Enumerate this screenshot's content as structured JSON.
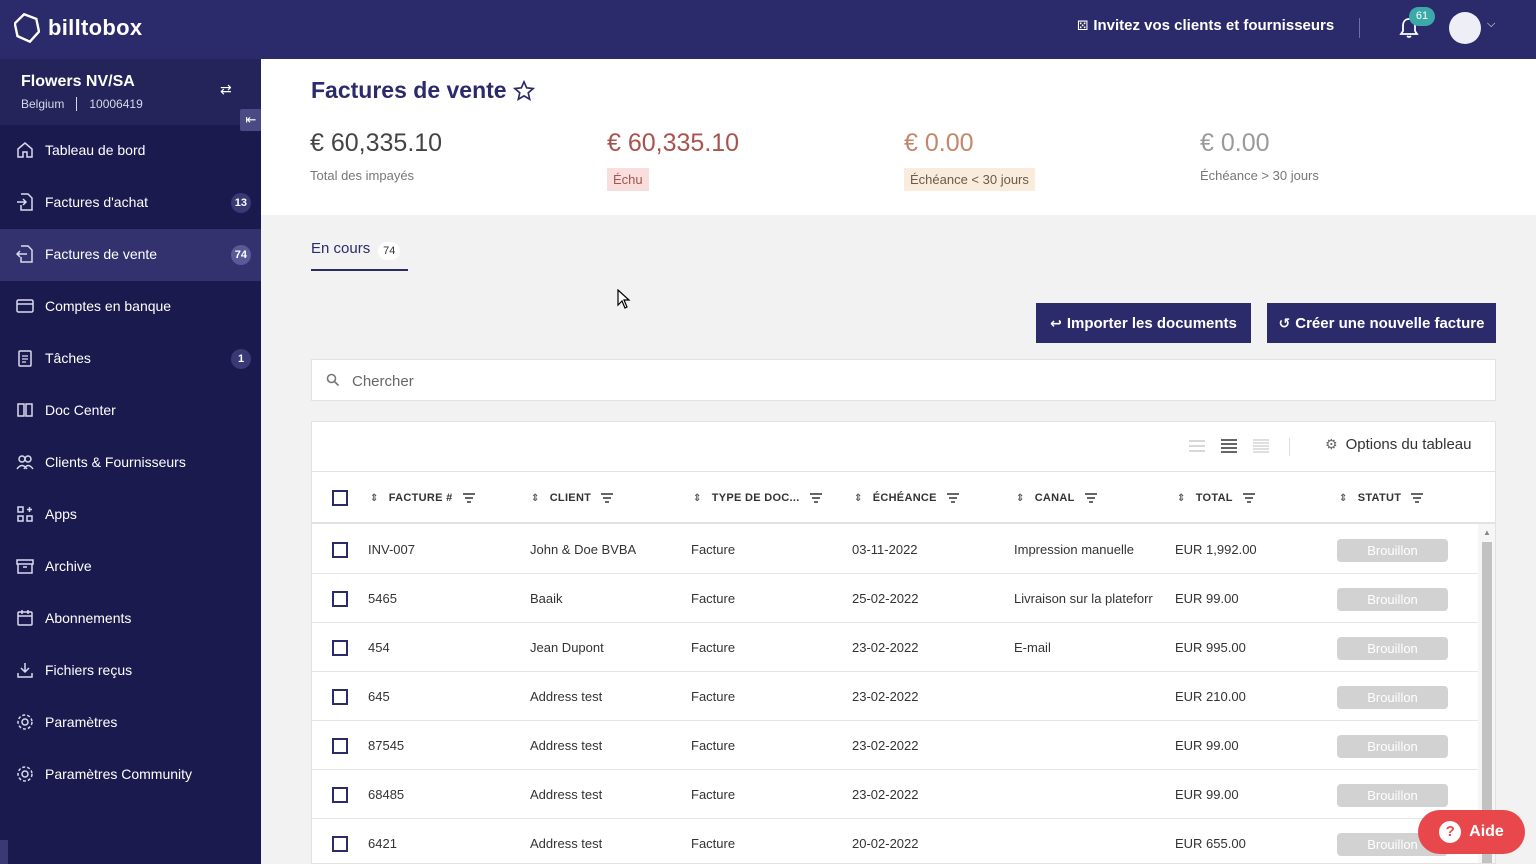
{
  "app": {
    "brand": "billtobox"
  },
  "topbar": {
    "invite_label": "Invitez vos clients et fournisseurs",
    "notifications_count": "61"
  },
  "company": {
    "name": "Flowers NV/SA",
    "country": "Belgium",
    "id": "10006419"
  },
  "sidebar": {
    "items": [
      {
        "label": "Tableau de bord",
        "icon": "home-icon",
        "badge": ""
      },
      {
        "label": "Factures d'achat",
        "icon": "purchase-invoice-icon",
        "badge": "13"
      },
      {
        "label": "Factures de vente",
        "icon": "sales-invoice-icon",
        "badge": "74",
        "active": true
      },
      {
        "label": "Comptes en banque",
        "icon": "bank-card-icon",
        "badge": ""
      },
      {
        "label": "Tâches",
        "icon": "clipboard-icon",
        "badge": "1"
      },
      {
        "label": "Doc Center",
        "icon": "doc-center-icon",
        "badge": ""
      },
      {
        "label": "Clients & Fournisseurs",
        "icon": "contacts-icon",
        "badge": ""
      },
      {
        "label": "Apps",
        "icon": "apps-icon",
        "badge": ""
      },
      {
        "label": "Archive",
        "icon": "archive-icon",
        "badge": ""
      },
      {
        "label": "Abonnements",
        "icon": "calendar-icon",
        "badge": ""
      },
      {
        "label": "Fichiers reçus",
        "icon": "download-icon",
        "badge": ""
      },
      {
        "label": "Paramètres",
        "icon": "settings-icon",
        "badge": ""
      },
      {
        "label": "Paramètres Community",
        "icon": "settings-icon",
        "badge": ""
      }
    ]
  },
  "page": {
    "title": "Factures de vente"
  },
  "stats": [
    {
      "amount": "€ 60,335.10",
      "label": "Total des impayés"
    },
    {
      "amount": "€ 60,335.10",
      "label": "Échu"
    },
    {
      "amount": "€ 0.00",
      "label": "Échéance < 30 jours"
    },
    {
      "amount": "€ 0.00",
      "label": "Échéance > 30 jours"
    }
  ],
  "tabs": [
    {
      "label": "En cours",
      "count": "74"
    }
  ],
  "buttons": {
    "import": "Importer les documents",
    "create": "Créer une nouvelle facture"
  },
  "search": {
    "placeholder": "Chercher"
  },
  "table": {
    "options_label": "Options du tableau",
    "columns": [
      "FACTURE #",
      "CLIENT",
      "TYPE DE DOC...",
      "ÉCHÉANCE",
      "CANAL",
      "TOTAL",
      "STATUT"
    ],
    "rows": [
      {
        "invoice": "INV-007",
        "client": "John & Doe BVBA",
        "type": "Facture",
        "due": "03-11-2022",
        "channel": "Impression manuelle",
        "total": "EUR 1,992.00",
        "status": "Brouillon"
      },
      {
        "invoice": "5465",
        "client": "Baaik",
        "type": "Facture",
        "due": "25-02-2022",
        "channel": "Livraison sur la plateforr",
        "total": "EUR 99.00",
        "status": "Brouillon"
      },
      {
        "invoice": "454",
        "client": "Jean Dupont",
        "type": "Facture",
        "due": "23-02-2022",
        "channel": "E-mail",
        "total": "EUR 995.00",
        "status": "Brouillon"
      },
      {
        "invoice": "645",
        "client": "Address test",
        "type": "Facture",
        "due": "23-02-2022",
        "channel": "",
        "total": "EUR 210.00",
        "status": "Brouillon"
      },
      {
        "invoice": "87545",
        "client": "Address test",
        "type": "Facture",
        "due": "23-02-2022",
        "channel": "",
        "total": "EUR 99.00",
        "status": "Brouillon"
      },
      {
        "invoice": "68485",
        "client": "Address test",
        "type": "Facture",
        "due": "23-02-2022",
        "channel": "",
        "total": "EUR 99.00",
        "status": "Brouillon"
      },
      {
        "invoice": "6421",
        "client": "Address test",
        "type": "Facture",
        "due": "20-02-2022",
        "channel": "",
        "total": "EUR 655.00",
        "status": "Brouillon"
      }
    ]
  },
  "help": {
    "label": "Aide"
  },
  "colors": {
    "brand": "#2b2a6b",
    "sidebar": "#1b1a4e",
    "help": "#e8474c",
    "overdue": "#a8534d"
  }
}
